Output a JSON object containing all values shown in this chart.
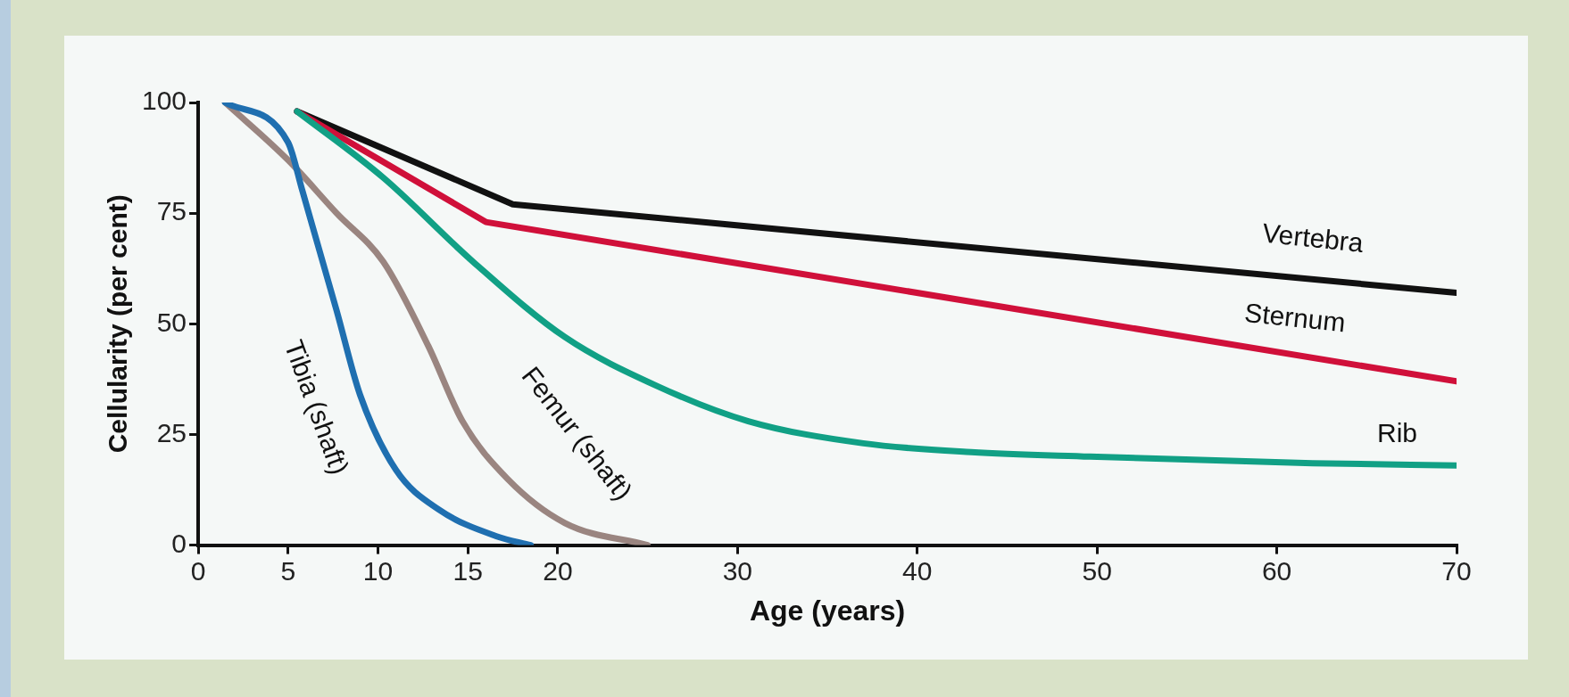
{
  "chart_data": {
    "type": "line",
    "xlabel": "Age (years)",
    "ylabel": "Cellularity (per cent)",
    "xlim": [
      0,
      70
    ],
    "xticks": [
      0,
      5,
      10,
      15,
      20,
      30,
      40,
      50,
      60,
      70
    ],
    "ylim": [
      0,
      100
    ],
    "yticks": [
      0,
      25,
      50,
      75,
      100
    ],
    "grid": false,
    "legend": false,
    "marker": "none",
    "line_style": "solid",
    "series": [
      {
        "name": "Tibia (shaft)",
        "color": "#1f6fb0",
        "x": [
          1.5,
          5,
          5.8,
          7.7,
          9,
          11,
          13.4,
          16.6,
          18.5
        ],
        "values": [
          100,
          91,
          80,
          53,
          34,
          17,
          8,
          2,
          0
        ]
      },
      {
        "name": "Femur (shaft)",
        "color": "#9a8580",
        "x": [
          1.5,
          5,
          7.7,
          10.3,
          12.8,
          14.7,
          17.2,
          20.4,
          25
        ],
        "values": [
          100,
          87,
          75,
          64,
          45,
          28,
          15,
          5,
          0
        ]
      },
      {
        "name": "Rib",
        "color": "#11a085",
        "x": [
          5.5,
          10.3,
          15.3,
          20.4,
          25.5,
          30.6,
          37,
          43,
          49.6,
          62,
          70
        ],
        "values": [
          98,
          83,
          64,
          47,
          36,
          28,
          23,
          21,
          20,
          18.5,
          18
        ]
      },
      {
        "name": "Sternum",
        "color": "#d0103a",
        "x": [
          5.5,
          16,
          70
        ],
        "values": [
          98,
          73,
          37
        ]
      },
      {
        "name": "Vertebra",
        "color": "#111111",
        "x": [
          5.5,
          17.5,
          70
        ],
        "values": [
          98,
          77,
          57
        ]
      }
    ]
  }
}
